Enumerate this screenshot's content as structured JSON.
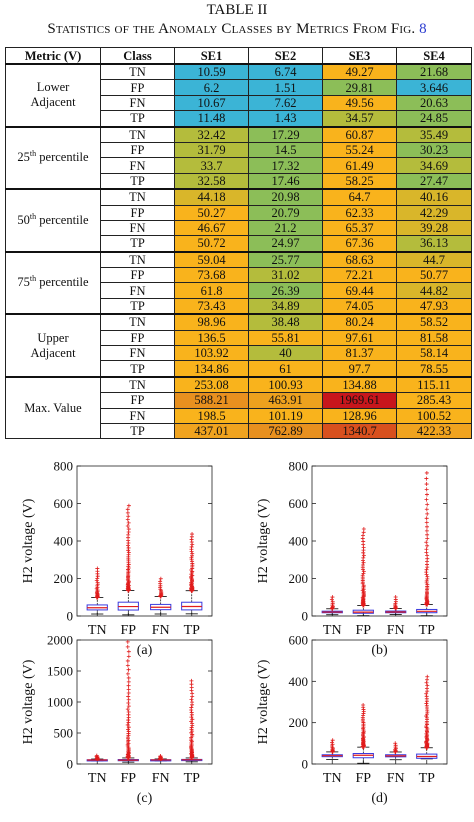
{
  "table": {
    "title": "TABLE II",
    "caption_text": "Statistics of the Anomaly Classes by Metrics From Fig.",
    "caption_ref": "8",
    "headers": [
      "Metric (V)",
      "Class",
      "SE1",
      "SE2",
      "SE3",
      "SE4"
    ],
    "groups": [
      {
        "metric_lines": [
          "Lower",
          "Adjacent"
        ],
        "rows": [
          {
            "cls": "TN",
            "vals": [
              "10.59",
              "6.74",
              "49.27",
              "21.68"
            ],
            "colors": [
              "#3bb4d6",
              "#3bb4d6",
              "#f9b31c",
              "#8cbe58"
            ]
          },
          {
            "cls": "FP",
            "vals": [
              "6.2",
              "1.51",
              "29.81",
              "3.646"
            ],
            "colors": [
              "#3bb4d6",
              "#3bb4d6",
              "#8cbe58",
              "#3bb4d6"
            ]
          },
          {
            "cls": "FN",
            "vals": [
              "10.67",
              "7.62",
              "49.56",
              "20.63"
            ],
            "colors": [
              "#3bb4d6",
              "#3bb4d6",
              "#f9b31c",
              "#8cbe58"
            ]
          },
          {
            "cls": "TP",
            "vals": [
              "11.48",
              "1.43",
              "34.57",
              "24.85"
            ],
            "colors": [
              "#3bb4d6",
              "#3bb4d6",
              "#b4bc3c",
              "#8cbe58"
            ]
          }
        ]
      },
      {
        "metric_main": "25",
        "metric_sup": "th",
        "metric_rest": " percentile",
        "rows": [
          {
            "cls": "TN",
            "vals": [
              "32.42",
              "17.29",
              "60.87",
              "35.49"
            ],
            "colors": [
              "#b4bc3c",
              "#8cbe58",
              "#f9b31c",
              "#b4bc3c"
            ]
          },
          {
            "cls": "FP",
            "vals": [
              "31.79",
              "14.5",
              "55.24",
              "30.23"
            ],
            "colors": [
              "#b4bc3c",
              "#8cbe58",
              "#f9b31c",
              "#8cbe58"
            ]
          },
          {
            "cls": "FN",
            "vals": [
              "33.7",
              "17.32",
              "61.49",
              "34.69"
            ],
            "colors": [
              "#b4bc3c",
              "#8cbe58",
              "#f9b31c",
              "#b4bc3c"
            ]
          },
          {
            "cls": "TP",
            "vals": [
              "32.58",
              "17.46",
              "58.25",
              "27.47"
            ],
            "colors": [
              "#b4bc3c",
              "#8cbe58",
              "#f9b31c",
              "#8cbe58"
            ]
          }
        ]
      },
      {
        "metric_main": "50",
        "metric_sup": "th",
        "metric_rest": " percentile",
        "rows": [
          {
            "cls": "TN",
            "vals": [
              "44.18",
              "20.98",
              "64.7",
              "40.16"
            ],
            "colors": [
              "#d9b62a",
              "#8cbe58",
              "#f9b31c",
              "#d9b62a"
            ]
          },
          {
            "cls": "FP",
            "vals": [
              "50.27",
              "20.79",
              "62.33",
              "42.29"
            ],
            "colors": [
              "#f9b31c",
              "#8cbe58",
              "#f9b31c",
              "#d9b62a"
            ]
          },
          {
            "cls": "FN",
            "vals": [
              "46.67",
              "21.2",
              "65.37",
              "39.28"
            ],
            "colors": [
              "#f9b31c",
              "#8cbe58",
              "#f9b31c",
              "#d9b62a"
            ]
          },
          {
            "cls": "TP",
            "vals": [
              "50.72",
              "24.97",
              "67.36",
              "36.13"
            ],
            "colors": [
              "#f9b31c",
              "#8cbe58",
              "#f9b31c",
              "#b4bc3c"
            ]
          }
        ]
      },
      {
        "metric_main": "75",
        "metric_sup": "th",
        "metric_rest": " percentile",
        "rows": [
          {
            "cls": "TN",
            "vals": [
              "59.04",
              "25.77",
              "68.63",
              "44.7"
            ],
            "colors": [
              "#f9b31c",
              "#8cbe58",
              "#f9b31c",
              "#d9b62a"
            ]
          },
          {
            "cls": "FP",
            "vals": [
              "73.68",
              "31.02",
              "72.21",
              "50.77"
            ],
            "colors": [
              "#f9b31c",
              "#b4bc3c",
              "#f9b31c",
              "#f9b31c"
            ]
          },
          {
            "cls": "FN",
            "vals": [
              "61.8",
              "26.39",
              "69.44",
              "44.82"
            ],
            "colors": [
              "#f9b31c",
              "#8cbe58",
              "#f9b31c",
              "#d9b62a"
            ]
          },
          {
            "cls": "TP",
            "vals": [
              "73.43",
              "34.89",
              "74.05",
              "47.93"
            ],
            "colors": [
              "#f9b31c",
              "#b4bc3c",
              "#f9b31c",
              "#f9b31c"
            ]
          }
        ]
      },
      {
        "metric_lines": [
          "Upper",
          "Adjacent"
        ],
        "rows": [
          {
            "cls": "TN",
            "vals": [
              "98.96",
              "38.48",
              "80.24",
              "58.52"
            ],
            "colors": [
              "#f9b31c",
              "#b4bc3c",
              "#f9b31c",
              "#f9b31c"
            ]
          },
          {
            "cls": "FP",
            "vals": [
              "136.5",
              "55.81",
              "97.61",
              "81.58"
            ],
            "colors": [
              "#f9b31c",
              "#f9b31c",
              "#f9b31c",
              "#f9b31c"
            ]
          },
          {
            "cls": "FN",
            "vals": [
              "103.92",
              "40",
              "81.37",
              "58.14"
            ],
            "colors": [
              "#f9b31c",
              "#b4bc3c",
              "#f9b31c",
              "#f9b31c"
            ]
          },
          {
            "cls": "TP",
            "vals": [
              "134.86",
              "61",
              "97.7",
              "78.55"
            ],
            "colors": [
              "#f9b31c",
              "#f9b31c",
              "#f9b31c",
              "#f9b31c"
            ]
          }
        ]
      },
      {
        "metric_lines": [
          "Max. Value"
        ],
        "rows": [
          {
            "cls": "TN",
            "vals": [
              "253.08",
              "100.93",
              "134.88",
              "115.11"
            ],
            "colors": [
              "#f9b31c",
              "#f9b31c",
              "#f9b31c",
              "#f9b31c"
            ]
          },
          {
            "cls": "FP",
            "vals": [
              "588.21",
              "463.91",
              "1969.61",
              "285.43"
            ],
            "colors": [
              "#e8901f",
              "#eda11e",
              "#c8161c",
              "#f9b31c"
            ]
          },
          {
            "cls": "FN",
            "vals": [
              "198.5",
              "101.19",
              "128.96",
              "100.52"
            ],
            "colors": [
              "#f9b31c",
              "#f9b31c",
              "#f9b31c",
              "#f9b31c"
            ]
          },
          {
            "cls": "TP",
            "vals": [
              "437.01",
              "762.89",
              "1340.7",
              "422.33"
            ],
            "colors": [
              "#f0a31f",
              "#e8901f",
              "#d8501e",
              "#f0a31f"
            ]
          }
        ]
      }
    ]
  },
  "figure": {
    "ylabel": "H2 voltage (V)",
    "panels": [
      {
        "caption": "(a)",
        "ymax": 800,
        "yticks": [
          0,
          200,
          400,
          600,
          800
        ],
        "categories": [
          "TN",
          "FP",
          "FN",
          "TP"
        ],
        "q1": [
          32.42,
          31.79,
          33.7,
          32.58
        ],
        "median": [
          44.18,
          50.27,
          46.67,
          50.72
        ],
        "q3": [
          59.04,
          73.68,
          61.8,
          73.43
        ],
        "lower_adj": [
          10.59,
          6.2,
          10.67,
          11.48
        ],
        "upper_adj": [
          98.96,
          136.5,
          103.92,
          134.86
        ],
        "max": [
          253.08,
          588.21,
          198.5,
          437.01
        ]
      },
      {
        "caption": "(b)",
        "ymax": 800,
        "yticks": [
          0,
          200,
          400,
          600,
          800
        ],
        "categories": [
          "TN",
          "FP",
          "FN",
          "TP"
        ],
        "q1": [
          17.29,
          14.5,
          17.32,
          17.46
        ],
        "median": [
          20.98,
          20.79,
          21.2,
          24.97
        ],
        "q3": [
          25.77,
          31.02,
          26.39,
          34.89
        ],
        "lower_adj": [
          6.74,
          1.51,
          7.62,
          1.43
        ],
        "upper_adj": [
          38.48,
          55.81,
          40,
          61
        ],
        "max": [
          100.93,
          463.91,
          101.19,
          762.89
        ]
      },
      {
        "caption": "(c)",
        "ymax": 2000,
        "yticks": [
          0,
          500,
          1000,
          1500,
          2000
        ],
        "categories": [
          "TN",
          "FP",
          "FN",
          "TP"
        ],
        "q1": [
          60.87,
          55.24,
          61.49,
          58.25
        ],
        "median": [
          64.7,
          62.33,
          65.37,
          67.36
        ],
        "q3": [
          68.63,
          72.21,
          69.44,
          74.05
        ],
        "lower_adj": [
          49.27,
          29.81,
          49.56,
          34.57
        ],
        "upper_adj": [
          80.24,
          97.61,
          81.37,
          97.7
        ],
        "max": [
          134.88,
          1969.61,
          128.96,
          1340.7
        ]
      },
      {
        "caption": "(d)",
        "ymax": 600,
        "yticks": [
          0,
          200,
          400,
          600
        ],
        "categories": [
          "TN",
          "FP",
          "FN",
          "TP"
        ],
        "q1": [
          35.49,
          30.23,
          34.69,
          27.47
        ],
        "median": [
          40.16,
          42.29,
          39.28,
          36.13
        ],
        "q3": [
          44.7,
          50.77,
          44.82,
          47.93
        ],
        "lower_adj": [
          21.68,
          3.646,
          20.63,
          24.85
        ],
        "upper_adj": [
          58.52,
          81.58,
          58.14,
          78.55
        ],
        "max": [
          115.11,
          285.43,
          100.52,
          422.33
        ]
      }
    ]
  },
  "chart_data": [
    {
      "type": "box",
      "categories": [
        "TN",
        "FP",
        "FN",
        "TP"
      ],
      "ylabel": "H2 voltage (V)",
      "ylim": [
        0,
        800
      ],
      "series": [
        {
          "q1": [
            32.42,
            31.79,
            33.7,
            32.58
          ],
          "median": [
            44.18,
            50.27,
            46.67,
            50.72
          ],
          "q3": [
            59.04,
            73.68,
            61.8,
            73.43
          ],
          "whisker_low": [
            10.59,
            6.2,
            10.67,
            11.48
          ],
          "whisker_high": [
            98.96,
            136.5,
            103.92,
            134.86
          ],
          "max": [
            253.08,
            588.21,
            198.5,
            437.01
          ]
        }
      ]
    },
    {
      "type": "box",
      "categories": [
        "TN",
        "FP",
        "FN",
        "TP"
      ],
      "ylabel": "H2 voltage (V)",
      "ylim": [
        0,
        800
      ],
      "series": [
        {
          "q1": [
            17.29,
            14.5,
            17.32,
            17.46
          ],
          "median": [
            20.98,
            20.79,
            21.2,
            24.97
          ],
          "q3": [
            25.77,
            31.02,
            26.39,
            34.89
          ],
          "whisker_low": [
            6.74,
            1.51,
            7.62,
            1.43
          ],
          "whisker_high": [
            38.48,
            55.81,
            40,
            61
          ],
          "max": [
            100.93,
            463.91,
            101.19,
            762.89
          ]
        }
      ]
    },
    {
      "type": "box",
      "categories": [
        "TN",
        "FP",
        "FN",
        "TP"
      ],
      "ylabel": "H2 voltage (V)",
      "ylim": [
        0,
        2000
      ],
      "series": [
        {
          "q1": [
            60.87,
            55.24,
            61.49,
            58.25
          ],
          "median": [
            64.7,
            62.33,
            65.37,
            67.36
          ],
          "q3": [
            68.63,
            72.21,
            69.44,
            74.05
          ],
          "whisker_low": [
            49.27,
            29.81,
            49.56,
            34.57
          ],
          "whisker_high": [
            80.24,
            97.61,
            81.37,
            97.7
          ],
          "max": [
            134.88,
            1969.61,
            128.96,
            1340.7
          ]
        }
      ]
    },
    {
      "type": "box",
      "categories": [
        "TN",
        "FP",
        "FN",
        "TP"
      ],
      "ylabel": "H2 voltage (V)",
      "ylim": [
        0,
        600
      ],
      "series": [
        {
          "q1": [
            35.49,
            30.23,
            34.69,
            27.47
          ],
          "median": [
            40.16,
            42.29,
            39.28,
            36.13
          ],
          "q3": [
            44.7,
            50.77,
            44.82,
            47.93
          ],
          "whisker_low": [
            21.68,
            3.646,
            20.63,
            24.85
          ],
          "whisker_high": [
            58.52,
            81.58,
            58.14,
            78.55
          ],
          "max": [
            115.11,
            285.43,
            100.52,
            422.33
          ]
        }
      ]
    }
  ]
}
